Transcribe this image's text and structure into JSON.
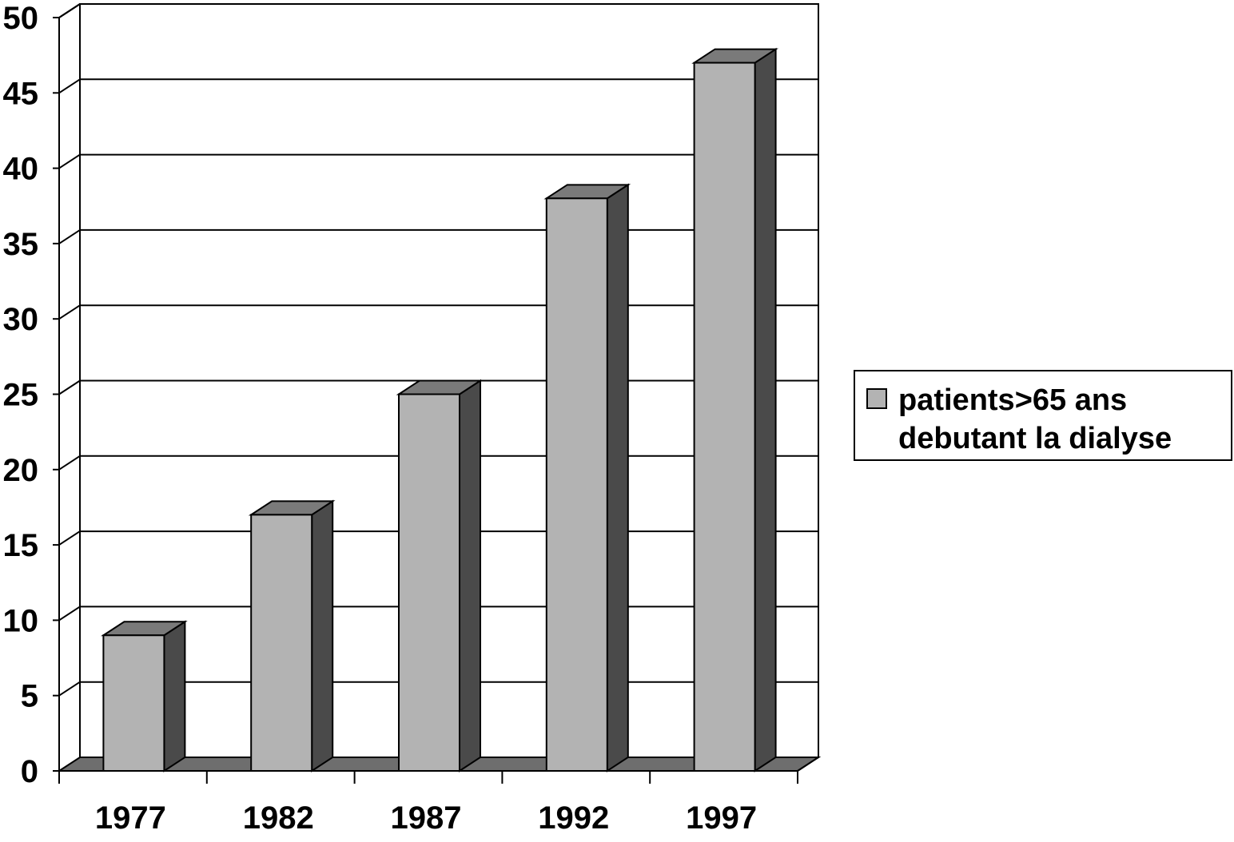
{
  "chart_data": {
    "type": "bar",
    "style": "3d-column",
    "categories": [
      "1977",
      "1982",
      "1987",
      "1992",
      "1997"
    ],
    "series": [
      {
        "name": "patients>65 ans debutant la dialyse",
        "values": [
          9,
          17,
          25,
          38,
          47
        ]
      }
    ],
    "title": "",
    "xlabel": "",
    "ylabel": "",
    "ylim": [
      0,
      50
    ],
    "yticks": [
      "0",
      "5",
      "10",
      "15",
      "20",
      "25",
      "30",
      "35",
      "40",
      "45",
      "50"
    ],
    "grid": true,
    "legend_position": "right",
    "colors": {
      "bar_front": "#b3b3b3",
      "bar_side": "#4a4a4a",
      "bar_top": "#7a7a7a",
      "floor": "#6e6e6e",
      "grid": "#000000"
    }
  }
}
